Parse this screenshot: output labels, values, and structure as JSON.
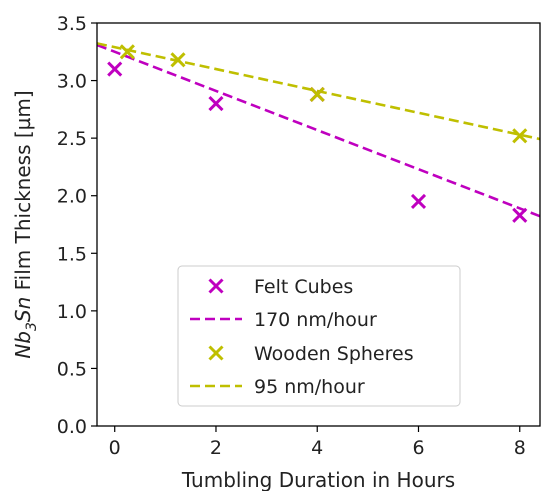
{
  "chart_data": {
    "type": "scatter",
    "xlabel": "Tumbling Duration in Hours",
    "ylabel_parts": {
      "prefix": "Nb",
      "subscript": "3",
      "italic_suffix": "Sn",
      "rest": " Film Thickness [µm]"
    },
    "xlim": [
      -0.35,
      8.4
    ],
    "ylim": [
      0.0,
      3.5
    ],
    "xticks": [
      0,
      2,
      4,
      6,
      8
    ],
    "yticks": [
      0.0,
      0.5,
      1.0,
      1.5,
      2.0,
      2.5,
      3.0,
      3.5
    ],
    "grid": false,
    "legend_position": "lower center",
    "series": [
      {
        "name": "Felt Cubes",
        "kind": "points",
        "marker": "x",
        "color": "#bf00bf",
        "x": [
          0,
          2,
          4,
          6,
          8
        ],
        "y": [
          3.1,
          2.8,
          2.88,
          1.95,
          1.83
        ]
      },
      {
        "name": "170 nm/hour",
        "kind": "fit",
        "linestyle": "dashed",
        "color": "#bf00bf",
        "intercept": 3.25,
        "slope": -0.17
      },
      {
        "name": "Wooden Spheres",
        "kind": "points",
        "marker": "x",
        "color": "#bfbf00",
        "x": [
          0.25,
          1.25,
          4,
          8
        ],
        "y": [
          3.25,
          3.18,
          2.88,
          2.52
        ]
      },
      {
        "name": "95 nm/hour",
        "kind": "fit",
        "linestyle": "dashed",
        "color": "#bfbf00",
        "intercept": 3.29,
        "slope": -0.095
      }
    ]
  }
}
